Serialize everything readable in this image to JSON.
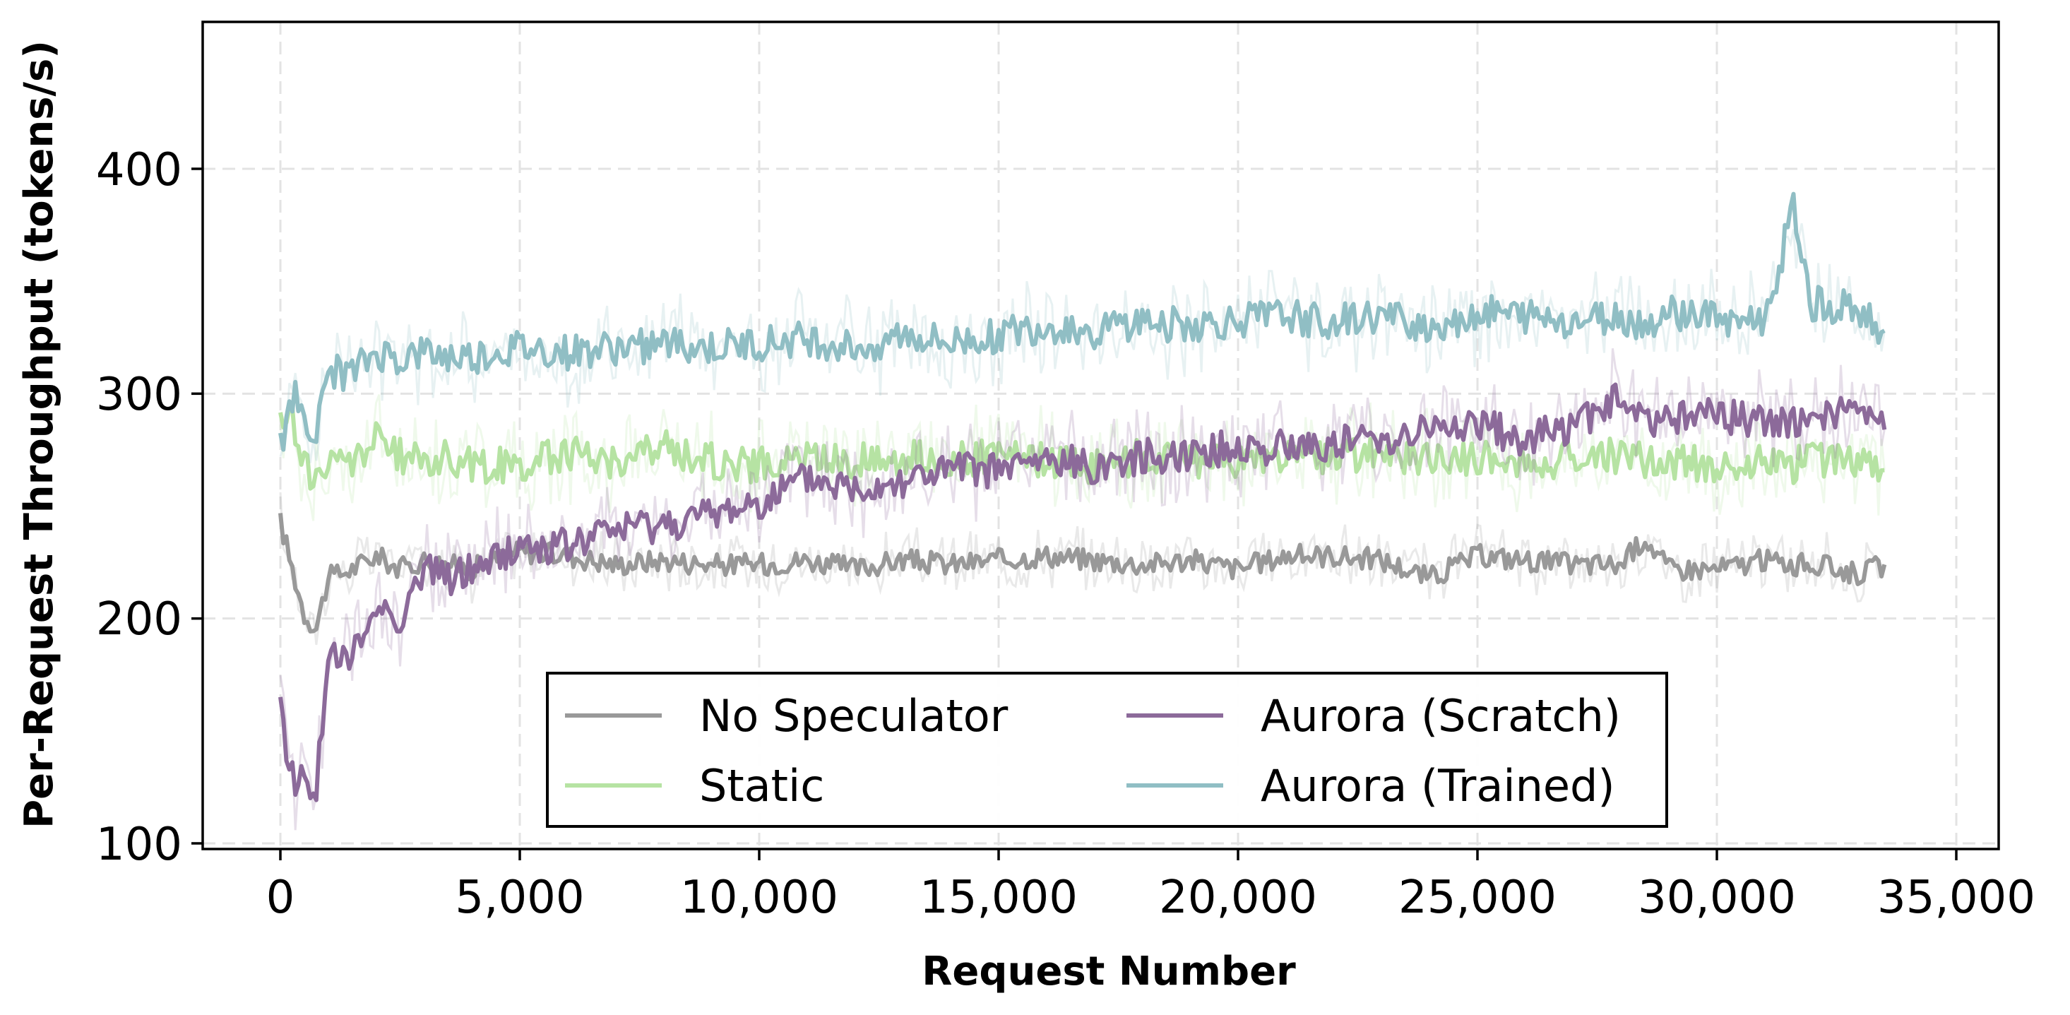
{
  "chart_data": {
    "type": "line",
    "title": "",
    "xlabel": "Request Number",
    "ylabel": "Per-Request Throughput (tokens/s)",
    "xlim": [
      -1600,
      36400
    ],
    "ylim": [
      95,
      466
    ],
    "grid": true,
    "legend_position": "lower center",
    "x_ticks": [
      0,
      5000,
      10000,
      15000,
      20000,
      25000,
      30000,
      35000
    ],
    "x_tick_labels": [
      "0",
      "5,000",
      "10,000",
      "15,000",
      "20,000",
      "25,000",
      "30,000",
      "35,000"
    ],
    "y_ticks": [
      100,
      200,
      300,
      400
    ],
    "y_tick_labels": [
      "100",
      "200",
      "300",
      "400"
    ],
    "x": [
      0,
      250,
      500,
      750,
      1000,
      1500,
      2000,
      2500,
      3000,
      3500,
      4000,
      5000,
      6000,
      7000,
      8000,
      9000,
      10000,
      11000,
      12000,
      13000,
      14000,
      15000,
      16000,
      17000,
      18000,
      19000,
      20000,
      21000,
      22000,
      23000,
      24000,
      25000,
      26000,
      27000,
      28000,
      28500,
      29000,
      30000,
      31000,
      31600,
      32000,
      33000,
      33500
    ],
    "series": [
      {
        "name": "No Speculator",
        "color": "#999999",
        "values": [
          243,
          222,
          202,
          196,
          218,
          222,
          228,
          222,
          226,
          224,
          222,
          230,
          228,
          224,
          226,
          224,
          224,
          226,
          222,
          226,
          224,
          226,
          228,
          226,
          224,
          226,
          222,
          228,
          228,
          226,
          218,
          228,
          226,
          224,
          224,
          236,
          222,
          222,
          226,
          224,
          224,
          220,
          224
        ]
      },
      {
        "name": "Static",
        "color": "#b6e3a3",
        "values": [
          285,
          290,
          268,
          262,
          268,
          270,
          280,
          272,
          270,
          272,
          268,
          268,
          274,
          270,
          276,
          270,
          268,
          272,
          270,
          272,
          270,
          272,
          270,
          268,
          272,
          270,
          270,
          272,
          272,
          274,
          270,
          272,
          268,
          272,
          272,
          270,
          270,
          268,
          270,
          268,
          272,
          268,
          266
        ]
      },
      {
        "name": "Aurora (Scratch)",
        "color": "#8c6a9a",
        "values": [
          158,
          130,
          128,
          126,
          182,
          182,
          206,
          200,
          222,
          218,
          222,
          232,
          232,
          240,
          242,
          246,
          252,
          262,
          258,
          262,
          266,
          266,
          270,
          268,
          272,
          274,
          276,
          276,
          278,
          280,
          284,
          286,
          280,
          286,
          298,
          286,
          290,
          290,
          288,
          286,
          292,
          290,
          284
        ]
      },
      {
        "name": "Aurora (Trained)",
        "color": "#90bec4",
        "values": [
          275,
          300,
          292,
          280,
          310,
          308,
          318,
          315,
          318,
          316,
          316,
          320,
          318,
          320,
          322,
          320,
          322,
          324,
          320,
          326,
          322,
          326,
          330,
          328,
          332,
          330,
          332,
          334,
          332,
          334,
          330,
          336,
          334,
          332,
          334,
          330,
          336,
          334,
          332,
          382,
          340,
          338,
          328
        ]
      }
    ]
  },
  "legend": {
    "items": [
      {
        "label": "No Speculator",
        "color": "#999999"
      },
      {
        "label": "Static",
        "color": "#b6e3a3"
      },
      {
        "label": "Aurora (Scratch)",
        "color": "#8c6a9a"
      },
      {
        "label": "Aurora (Trained)",
        "color": "#90bec4"
      }
    ]
  },
  "axes": {
    "xlabel": "Request Number",
    "ylabel": "Per-Request Throughput (tokens/s)",
    "x_tick_labels": [
      "0",
      "5,000",
      "10,000",
      "15,000",
      "20,000",
      "25,000",
      "30,000",
      "35,000"
    ],
    "y_tick_labels": [
      "100",
      "200",
      "300",
      "400"
    ]
  }
}
